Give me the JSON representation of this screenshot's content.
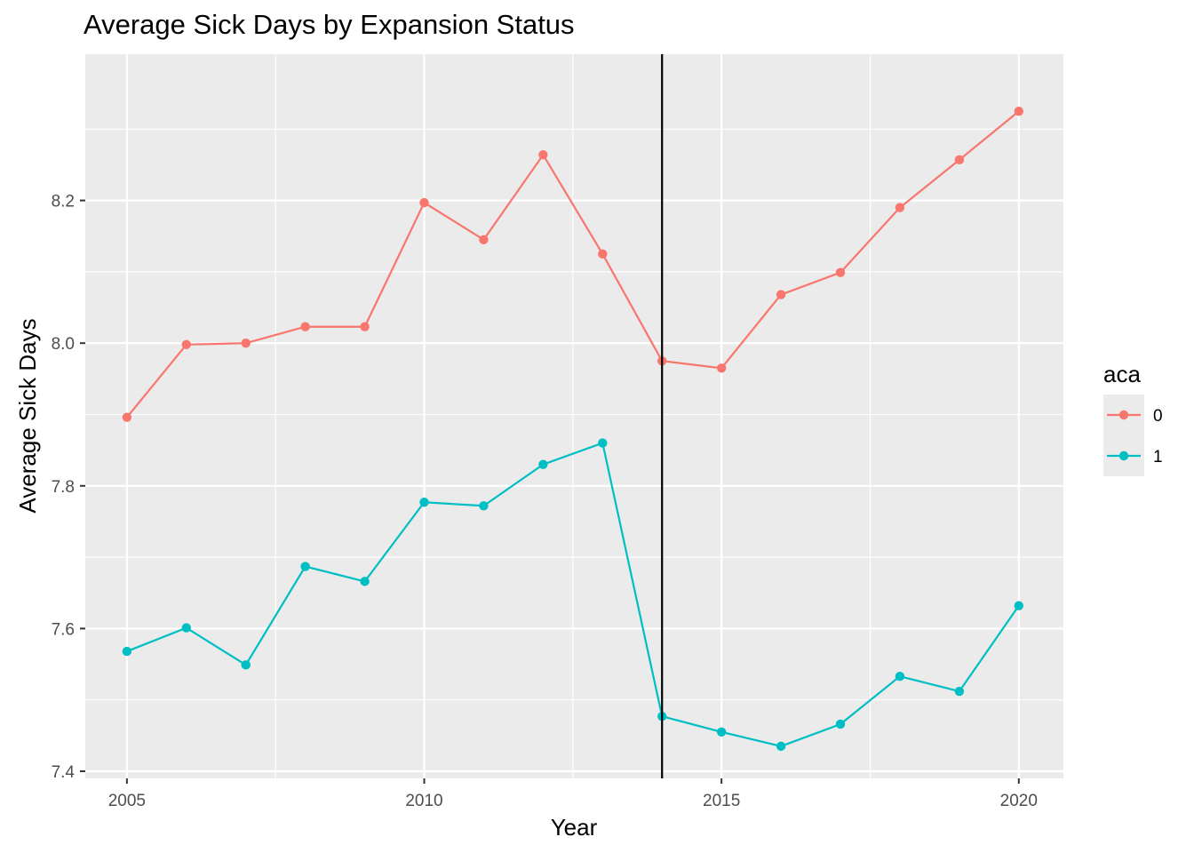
{
  "chart_data": {
    "type": "line",
    "title": "Average Sick Days by Expansion Status",
    "xlabel": "Year",
    "ylabel": "Average Sick Days",
    "xlim": [
      2004.3,
      2020.75
    ],
    "ylim": [
      7.39,
      8.405
    ],
    "x_ticks": [
      2005,
      2010,
      2015,
      2020
    ],
    "y_ticks": [
      7.4,
      7.6,
      7.8,
      8.0,
      8.2
    ],
    "y_tick_labels": [
      "7.4",
      "7.6",
      "7.8",
      "8.0",
      "8.2"
    ],
    "grid": true,
    "vline": 2014,
    "legend": {
      "title": "aca",
      "placement": "right"
    },
    "x": [
      2005,
      2006,
      2007,
      2008,
      2009,
      2010,
      2011,
      2012,
      2013,
      2014,
      2015,
      2016,
      2017,
      2018,
      2019,
      2020
    ],
    "series": [
      {
        "name": "0",
        "color": "#F8766D",
        "values": [
          7.896,
          7.998,
          8.0,
          8.023,
          8.023,
          8.197,
          8.145,
          8.264,
          8.125,
          7.975,
          7.965,
          8.068,
          8.099,
          8.19,
          8.257,
          8.325
        ]
      },
      {
        "name": "1",
        "color": "#00BFC4",
        "values": [
          7.568,
          7.601,
          7.549,
          7.687,
          7.666,
          7.777,
          7.772,
          7.83,
          7.86,
          7.477,
          7.455,
          7.435,
          7.466,
          7.533,
          7.512,
          7.632
        ]
      }
    ]
  }
}
